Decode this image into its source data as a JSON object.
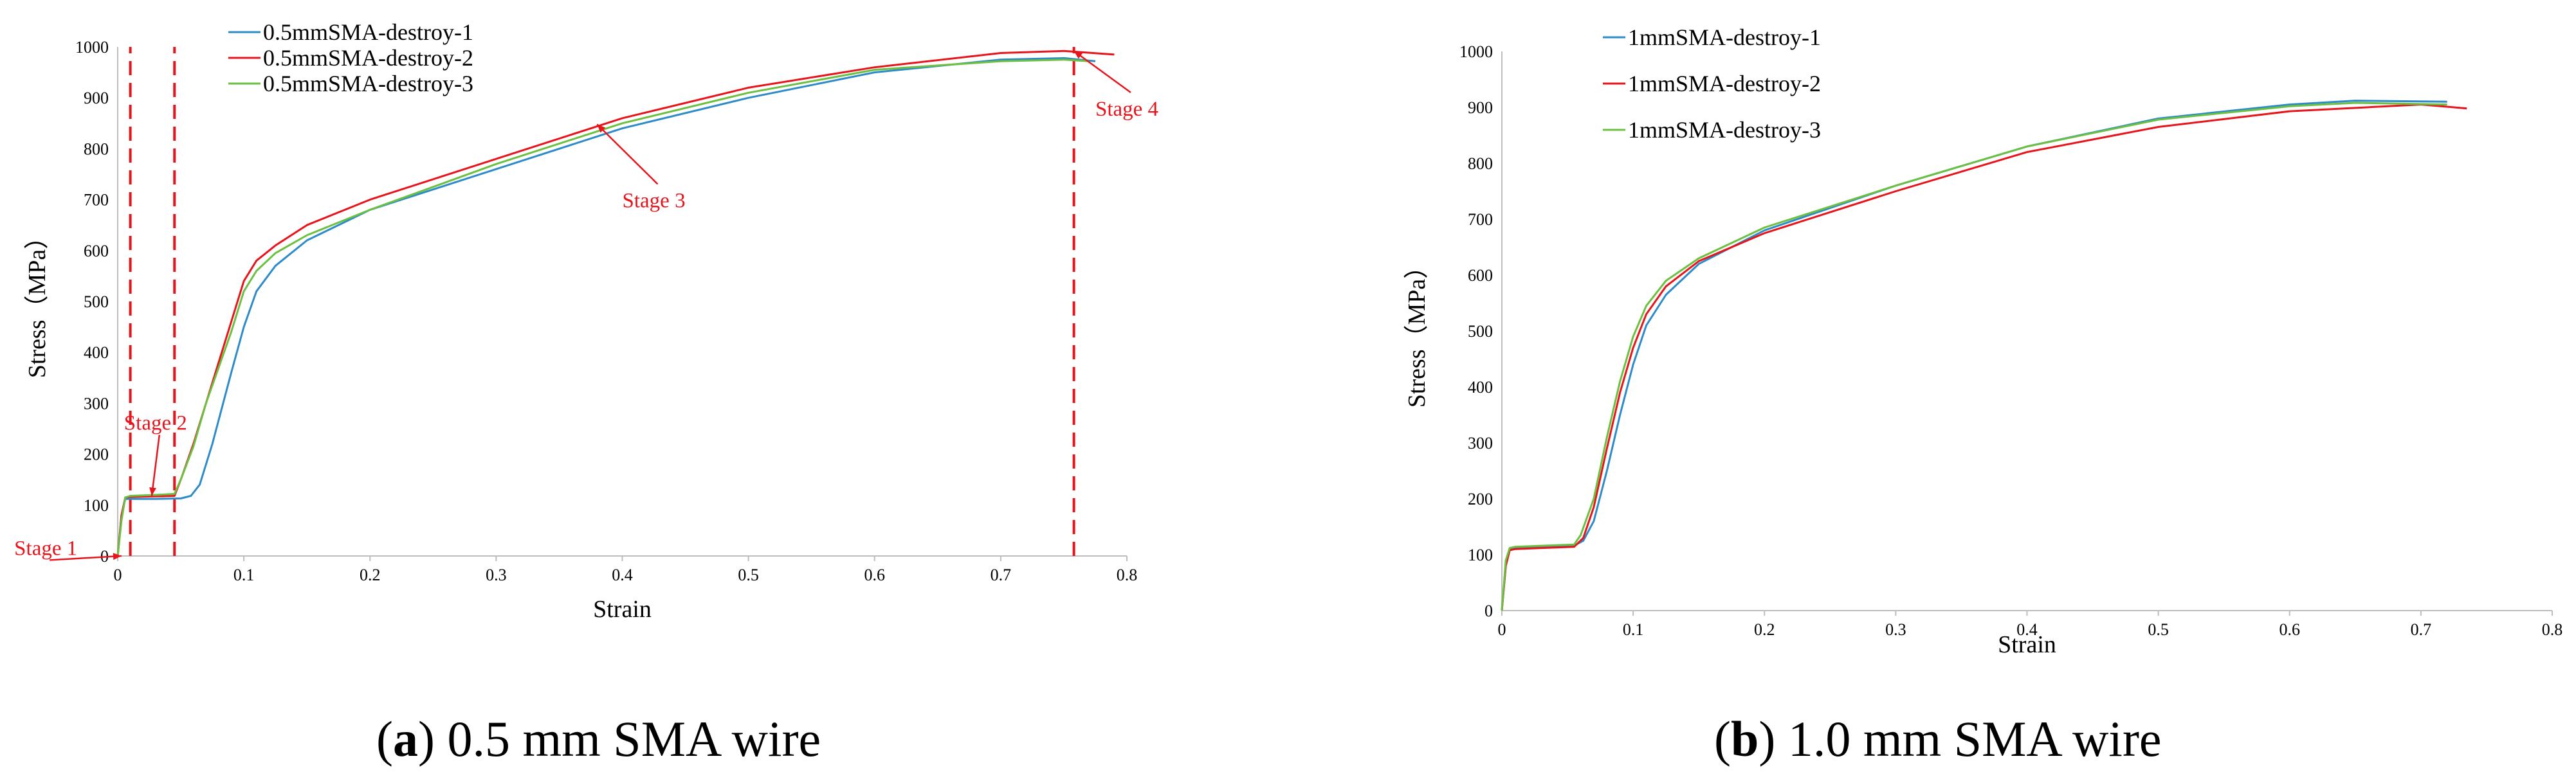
{
  "panels": [
    {
      "caption_letter": "a",
      "caption_text": "0.5 mm SMA wire",
      "chart_data": {
        "type": "line",
        "xlabel": "Strain",
        "ylabel": "Stress（MPa）",
        "xlim": [
          0,
          0.8
        ],
        "ylim": [
          0,
          1000
        ],
        "xticks": [
          0,
          0.1,
          0.2,
          0.3,
          0.4,
          0.5,
          0.6,
          0.7,
          0.8
        ],
        "yticks": [
          0,
          100,
          200,
          300,
          400,
          500,
          600,
          700,
          800,
          900,
          1000
        ],
        "legend": "top-left",
        "series": [
          {
            "name": "0.5mmSMA-destroy-1",
            "color": "#2e8bc9",
            "x": [
              0,
              0.003,
              0.006,
              0.01,
              0.03,
              0.05,
              0.058,
              0.065,
              0.075,
              0.09,
              0.1,
              0.11,
              0.125,
              0.15,
              0.2,
              0.3,
              0.4,
              0.5,
              0.6,
              0.7,
              0.75,
              0.775
            ],
            "y": [
              0,
              80,
              112,
              112,
              112,
              113,
              118,
              140,
              220,
              360,
              450,
              520,
              570,
              620,
              680,
              760,
              840,
              900,
              950,
              975,
              978,
              972
            ]
          },
          {
            "name": "0.5mmSMA-destroy-2",
            "color": "#e8141c",
            "x": [
              0,
              0.003,
              0.006,
              0.01,
              0.03,
              0.045,
              0.05,
              0.06,
              0.07,
              0.08,
              0.09,
              0.1,
              0.11,
              0.125,
              0.15,
              0.2,
              0.3,
              0.4,
              0.5,
              0.6,
              0.7,
              0.75,
              0.79
            ],
            "y": [
              0,
              80,
              115,
              116,
              117,
              118,
              150,
              220,
              300,
              380,
              460,
              540,
              580,
              610,
              650,
              700,
              780,
              860,
              920,
              960,
              988,
              992,
              985
            ]
          },
          {
            "name": "0.5mmSMA-destroy-3",
            "color": "#6cc041",
            "x": [
              0,
              0.003,
              0.006,
              0.01,
              0.03,
              0.045,
              0.05,
              0.06,
              0.07,
              0.08,
              0.09,
              0.1,
              0.11,
              0.125,
              0.15,
              0.2,
              0.3,
              0.4,
              0.5,
              0.6,
              0.7,
              0.75,
              0.77
            ],
            "y": [
              0,
              70,
              115,
              118,
              120,
              122,
              150,
              215,
              300,
              370,
              440,
              520,
              560,
              595,
              630,
              680,
              770,
              850,
              910,
              955,
              972,
              975,
              972
            ]
          }
        ],
        "annotations": [
          {
            "text": "Stage 1",
            "x": 0.003,
            "y": 0,
            "label_x": -0.082,
            "label_y": 2
          },
          {
            "text": "Stage 2",
            "x": 0.027,
            "y": 118,
            "label_x": 0.005,
            "label_y": 248
          },
          {
            "text": "Stage 3",
            "x": 0.38,
            "y": 848,
            "label_x": 0.4,
            "label_y": 685
          },
          {
            "text": "Stage 4",
            "x": 0.758,
            "y": 992,
            "label_x": 0.775,
            "label_y": 865
          }
        ],
        "vlines": [
          0.01,
          0.045,
          0.758
        ]
      }
    },
    {
      "caption_letter": "b",
      "caption_text": "1.0 mm SMA wire",
      "chart_data": {
        "type": "line",
        "xlabel": "Strain",
        "ylabel": "Stress（MPa）",
        "xlim": [
          0,
          0.8
        ],
        "ylim": [
          0,
          1000
        ],
        "xticks": [
          0,
          0.1,
          0.2,
          0.3,
          0.4,
          0.5,
          0.6,
          0.7,
          0.8
        ],
        "yticks": [
          0,
          100,
          200,
          300,
          400,
          500,
          600,
          700,
          800,
          900,
          1000
        ],
        "legend": "top-left",
        "series": [
          {
            "name": "1mmSMA-destroy-1",
            "color": "#2e8bc9",
            "x": [
              0,
              0.003,
              0.006,
              0.01,
              0.03,
              0.055,
              0.062,
              0.07,
              0.08,
              0.09,
              0.1,
              0.11,
              0.125,
              0.15,
              0.2,
              0.3,
              0.4,
              0.5,
              0.6,
              0.65,
              0.72
            ],
            "y": [
              0,
              80,
              110,
              112,
              114,
              116,
              125,
              160,
              250,
              350,
              440,
              510,
              565,
              620,
              680,
              760,
              830,
              880,
              905,
              912,
              910
            ]
          },
          {
            "name": "1mmSMA-destroy-2",
            "color": "#e8141c",
            "x": [
              0,
              0.003,
              0.006,
              0.01,
              0.03,
              0.055,
              0.062,
              0.07,
              0.08,
              0.09,
              0.1,
              0.11,
              0.125,
              0.15,
              0.2,
              0.3,
              0.4,
              0.5,
              0.6,
              0.7,
              0.735
            ],
            "y": [
              0,
              80,
              108,
              110,
              112,
              114,
              130,
              185,
              290,
              390,
              470,
              530,
              580,
              625,
              675,
              750,
              820,
              865,
              893,
              905,
              898
            ]
          },
          {
            "name": "1mmSMA-destroy-3",
            "color": "#6cc041",
            "x": [
              0,
              0.003,
              0.006,
              0.01,
              0.03,
              0.055,
              0.06,
              0.07,
              0.08,
              0.09,
              0.1,
              0.11,
              0.125,
              0.15,
              0.2,
              0.3,
              0.4,
              0.5,
              0.6,
              0.65,
              0.72
            ],
            "y": [
              0,
              90,
              112,
              114,
              116,
              118,
              135,
              200,
              310,
              410,
              490,
              545,
              590,
              630,
              685,
              760,
              830,
              878,
              902,
              908,
              905
            ]
          }
        ],
        "annotations": [],
        "vlines": []
      }
    }
  ]
}
